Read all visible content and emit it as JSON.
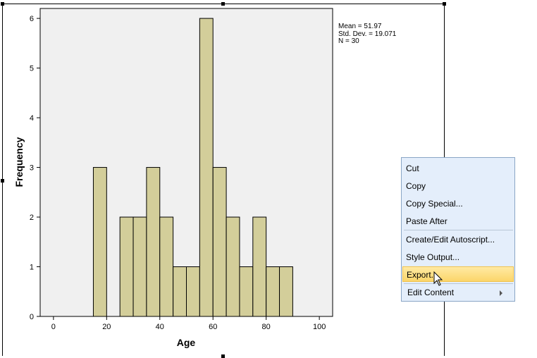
{
  "chart_data": {
    "type": "bar",
    "title": "",
    "xlabel": "Age",
    "ylabel": "Frequency",
    "xlim": [
      -5,
      105
    ],
    "ylim": [
      0,
      6.2
    ],
    "x_ticks": [
      0,
      20,
      40,
      60,
      80,
      100
    ],
    "y_ticks": [
      0,
      1,
      2,
      3,
      4,
      5,
      6
    ],
    "bins": [
      {
        "start": 15,
        "end": 20,
        "count": 3
      },
      {
        "start": 25,
        "end": 30,
        "count": 2
      },
      {
        "start": 30,
        "end": 35,
        "count": 2
      },
      {
        "start": 35,
        "end": 40,
        "count": 3
      },
      {
        "start": 40,
        "end": 45,
        "count": 2
      },
      {
        "start": 45,
        "end": 50,
        "count": 1
      },
      {
        "start": 50,
        "end": 55,
        "count": 1
      },
      {
        "start": 55,
        "end": 60,
        "count": 6
      },
      {
        "start": 60,
        "end": 65,
        "count": 3
      },
      {
        "start": 65,
        "end": 70,
        "count": 2
      },
      {
        "start": 70,
        "end": 75,
        "count": 1
      },
      {
        "start": 75,
        "end": 80,
        "count": 2
      },
      {
        "start": 80,
        "end": 85,
        "count": 1
      },
      {
        "start": 85,
        "end": 90,
        "count": 1
      }
    ],
    "bar_color": "#d3ce9a",
    "background_color": "#f0f0f0",
    "grid": false,
    "stats": {
      "mean": "Mean = 51.97",
      "std_dev": "Std. Dev. = 19.071",
      "n": "N = 30"
    }
  },
  "context_menu": {
    "items": [
      {
        "label": "Cut"
      },
      {
        "label": "Copy"
      },
      {
        "label": "Copy Special..."
      },
      {
        "label": "Paste After"
      },
      {
        "label": "Create/Edit Autoscript..."
      },
      {
        "label": "Style Output..."
      },
      {
        "label": "Export...",
        "highlighted": true
      },
      {
        "label": "Edit Content",
        "has_submenu": true
      }
    ],
    "highlight_color": "#fbd56a",
    "background_color": "#e4eefb"
  }
}
